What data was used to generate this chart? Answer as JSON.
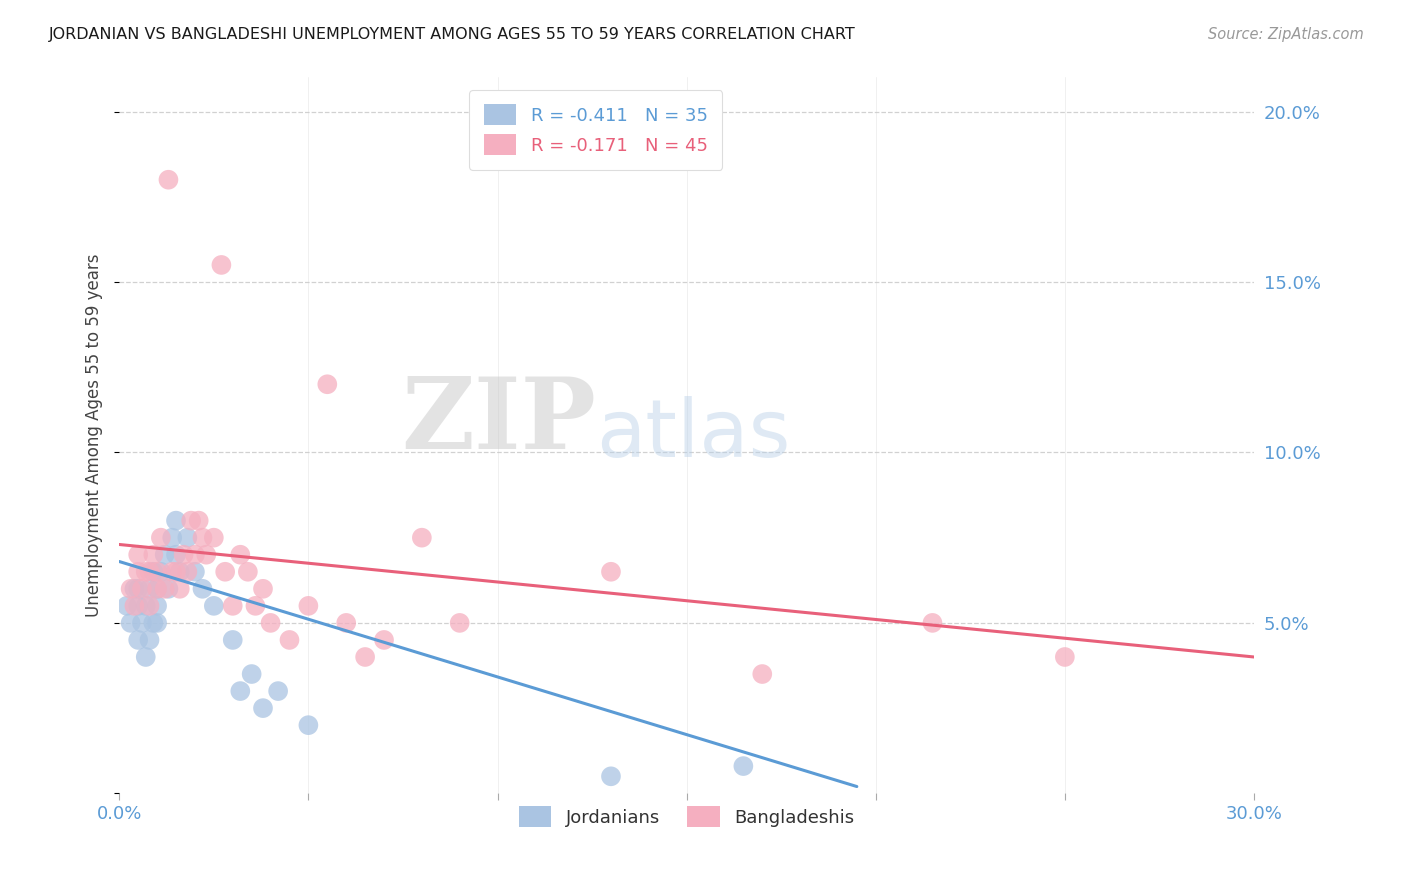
{
  "title": "JORDANIAN VS BANGLADESHI UNEMPLOYMENT AMONG AGES 55 TO 59 YEARS CORRELATION CHART",
  "source": "Source: ZipAtlas.com",
  "ylabel": "Unemployment Among Ages 55 to 59 years",
  "xlim": [
    0.0,
    0.3
  ],
  "ylim": [
    0.0,
    0.21
  ],
  "xticks": [
    0.0,
    0.05,
    0.1,
    0.15,
    0.2,
    0.25,
    0.3
  ],
  "xticklabels": [
    "0.0%",
    "",
    "",
    "",
    "",
    "",
    "30.0%"
  ],
  "yticks": [
    0.0,
    0.05,
    0.1,
    0.15,
    0.2
  ],
  "yticklabels_right": [
    "",
    "5.0%",
    "10.0%",
    "15.0%",
    "20.0%"
  ],
  "watermark_zip": "ZIP",
  "watermark_atlas": "atlas",
  "legend_line1": "R = -0.411   N = 35",
  "legend_line2": "R = -0.171   N = 45",
  "jordanian_color": "#aac4e2",
  "bangladeshi_color": "#f5afc0",
  "jordanian_line_color": "#5b9bd5",
  "bangladeshi_line_color": "#e8607a",
  "title_color": "#1a1a1a",
  "source_color": "#999999",
  "axis_label_color": "#5b9bd5",
  "jordanians_x": [
    0.002,
    0.003,
    0.004,
    0.005,
    0.005,
    0.005,
    0.006,
    0.007,
    0.007,
    0.008,
    0.008,
    0.009,
    0.009,
    0.01,
    0.01,
    0.01,
    0.011,
    0.012,
    0.013,
    0.014,
    0.015,
    0.015,
    0.016,
    0.018,
    0.02,
    0.022,
    0.025,
    0.03,
    0.032,
    0.035,
    0.038,
    0.042,
    0.05,
    0.13,
    0.165
  ],
  "jordanians_y": [
    0.055,
    0.05,
    0.06,
    0.045,
    0.055,
    0.06,
    0.05,
    0.04,
    0.055,
    0.045,
    0.06,
    0.05,
    0.065,
    0.055,
    0.06,
    0.05,
    0.065,
    0.07,
    0.06,
    0.075,
    0.07,
    0.08,
    0.065,
    0.075,
    0.065,
    0.06,
    0.055,
    0.045,
    0.03,
    0.035,
    0.025,
    0.03,
    0.02,
    0.005,
    0.008
  ],
  "bangladeshis_x": [
    0.003,
    0.004,
    0.005,
    0.005,
    0.006,
    0.007,
    0.008,
    0.008,
    0.009,
    0.01,
    0.01,
    0.011,
    0.012,
    0.013,
    0.014,
    0.015,
    0.016,
    0.017,
    0.018,
    0.019,
    0.02,
    0.021,
    0.022,
    0.023,
    0.025,
    0.027,
    0.028,
    0.03,
    0.032,
    0.034,
    0.036,
    0.038,
    0.04,
    0.045,
    0.05,
    0.055,
    0.06,
    0.065,
    0.07,
    0.08,
    0.09,
    0.13,
    0.17,
    0.215,
    0.25
  ],
  "bangladeshis_y": [
    0.06,
    0.055,
    0.065,
    0.07,
    0.06,
    0.065,
    0.055,
    0.065,
    0.07,
    0.06,
    0.065,
    0.075,
    0.06,
    0.18,
    0.065,
    0.065,
    0.06,
    0.07,
    0.065,
    0.08,
    0.07,
    0.08,
    0.075,
    0.07,
    0.075,
    0.155,
    0.065,
    0.055,
    0.07,
    0.065,
    0.055,
    0.06,
    0.05,
    0.045,
    0.055,
    0.12,
    0.05,
    0.04,
    0.045,
    0.075,
    0.05,
    0.065,
    0.035,
    0.05,
    0.04
  ],
  "jordanian_trend_x": [
    0.0,
    0.195
  ],
  "jordanian_trend_y": [
    0.068,
    0.002
  ],
  "bangladeshi_trend_x": [
    0.0,
    0.3
  ],
  "bangladeshi_trend_y": [
    0.073,
    0.04
  ],
  "grid_color": "#cccccc",
  "bg_color": "#ffffff"
}
